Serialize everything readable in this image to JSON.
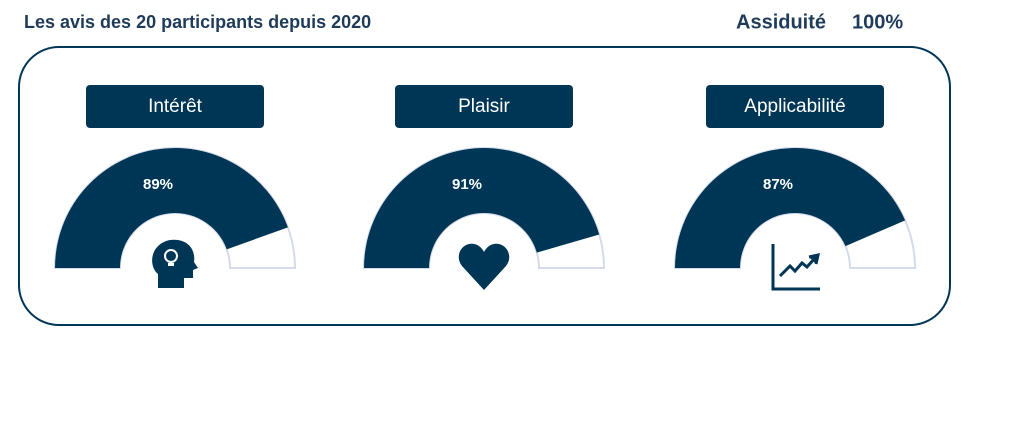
{
  "header": {
    "title": "Les avis des 20 participants depuis 2020",
    "attendance_label": "Assiduité",
    "attendance": 100,
    "attendance_label_value": "100%"
  },
  "chart_data": [
    {
      "type": "gauge",
      "title": "Intérêt",
      "values": [
        89
      ],
      "value_labels": [
        "89%"
      ],
      "ylim": [
        0,
        100
      ],
      "color": "#003655"
    },
    {
      "type": "gauge",
      "title": "Plaisir",
      "values": [
        91
      ],
      "value_labels": [
        "91%"
      ],
      "ylim": [
        0,
        100
      ],
      "color": "#003655"
    },
    {
      "type": "gauge",
      "title": "Applicabilité",
      "values": [
        87
      ],
      "value_labels": [
        "87%"
      ],
      "ylim": [
        0,
        100
      ],
      "color": "#003655"
    }
  ]
}
